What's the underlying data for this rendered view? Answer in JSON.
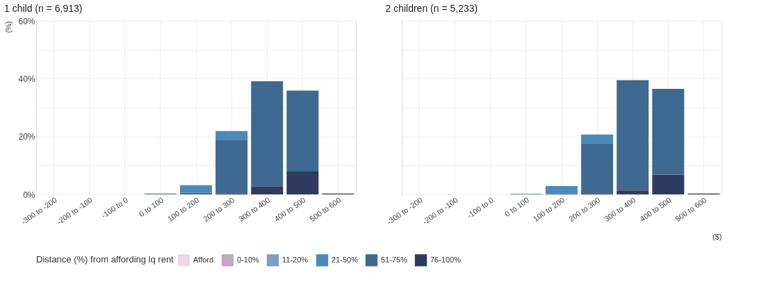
{
  "chart_data": [
    {
      "type": "bar",
      "title": "1 child (n = 6,913)",
      "ylabel": "(%)",
      "stacked": true,
      "grid": true,
      "legend": "bottom",
      "legend_title": "Distance (%) from affording lq rent",
      "categories": [
        "-300 to -200",
        "-200 to -100",
        "-100 to 0",
        "0 to 100",
        "100 to 200",
        "200 to 300",
        "300 to 400",
        "400 to 500",
        "500 to 600"
      ],
      "ylim": [
        0,
        60
      ],
      "yticks": [
        {
          "value": 0,
          "label": "0%"
        },
        {
          "value": 10,
          "label": null
        },
        {
          "value": 20,
          "label": "20%"
        },
        {
          "value": 30,
          "label": null
        },
        {
          "value": 40,
          "label": "40%"
        },
        {
          "value": 50,
          "label": null
        },
        {
          "value": 60,
          "label": "60%"
        }
      ],
      "series": [
        {
          "name": "76-100%",
          "color": "#2f3a60",
          "values": [
            0,
            0,
            0,
            0.1,
            0,
            0.3,
            2.8,
            7.9,
            0.3
          ]
        },
        {
          "name": "51-75%",
          "color": "#3e6990",
          "values": [
            0,
            0,
            0,
            0.2,
            0.6,
            18.4,
            36.3,
            28.0,
            0
          ]
        },
        {
          "name": "21-50%",
          "color": "#4a8ab8",
          "values": [
            0,
            0,
            0,
            0,
            2.6,
            3.2,
            0,
            0,
            0
          ]
        },
        {
          "name": "11-20%",
          "color": "#7d9cc8",
          "values": [
            0,
            0,
            0,
            0,
            0,
            0,
            0,
            0,
            0
          ]
        },
        {
          "name": "0-10%",
          "color": "#c4a6c8",
          "values": [
            0,
            0,
            0,
            0,
            0,
            0,
            0,
            0,
            0
          ]
        },
        {
          "name": "Afford",
          "color": "#ead8e8",
          "values": [
            0,
            0,
            0,
            0,
            0,
            0,
            0,
            0,
            0
          ]
        }
      ]
    },
    {
      "type": "bar",
      "title": "2 children (n = 5,233)",
      "xlabel": "($)",
      "stacked": true,
      "grid": true,
      "tick_labels": "x",
      "categories": [
        "-300 to -200",
        "-200 to -100",
        "-100 to 0",
        "0 to 100",
        "100 to 200",
        "200 to 300",
        "300 to 400",
        "400 to 500",
        "500 to 600"
      ],
      "ylim": [
        0,
        60
      ],
      "yticks": [
        {
          "value": 0,
          "label": null
        },
        {
          "value": 10,
          "label": null
        },
        {
          "value": 20,
          "label": null
        },
        {
          "value": 30,
          "label": null
        },
        {
          "value": 40,
          "label": null
        },
        {
          "value": 50,
          "label": null
        },
        {
          "value": 60,
          "label": null
        }
      ],
      "series": [
        {
          "color": "#2f3a60",
          "values": [
            0,
            0,
            0,
            0,
            0,
            0.3,
            1.4,
            6.8,
            0.3
          ]
        },
        {
          "color": "#3e6990",
          "values": [
            0,
            0,
            0,
            0.2,
            0.3,
            17.4,
            38.1,
            29.7,
            0
          ]
        },
        {
          "color": "#4a8ab8",
          "values": [
            0,
            0,
            0,
            0,
            2.6,
            3.0,
            0,
            0,
            0
          ]
        },
        {
          "color": "#7d9cc8",
          "values": [
            0,
            0,
            0,
            0,
            0,
            0,
            0,
            0,
            0
          ]
        },
        {
          "color": "#c4a6c8",
          "values": [
            0,
            0,
            0,
            0,
            0,
            0,
            0,
            0,
            0
          ]
        },
        {
          "color": "#ead8e8",
          "values": [
            0,
            0,
            0,
            0,
            0,
            0,
            0,
            0,
            0
          ]
        }
      ]
    }
  ]
}
